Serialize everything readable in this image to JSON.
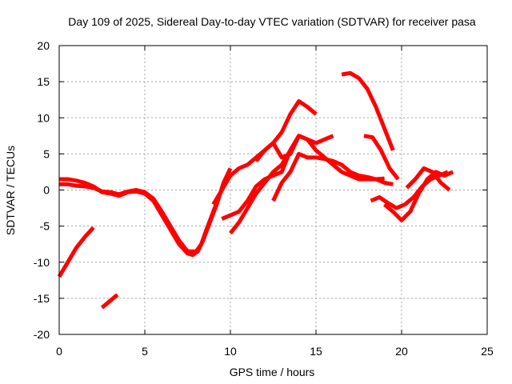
{
  "chart_data": {
    "type": "line",
    "title": "Day 109 of 2025, Sidereal Day-to-day VTEC variation (SDTVAR) for receiver pasa",
    "xlabel": "GPS time / hours",
    "ylabel": "SDTVAR / TECUs",
    "xlim": [
      0,
      25
    ],
    "ylim": [
      -20,
      20
    ],
    "xticks": [
      "0",
      "5",
      "10",
      "15",
      "20",
      "25"
    ],
    "yticks": [
      "-20",
      "-15",
      "-10",
      "-5",
      "0",
      "5",
      "10",
      "15",
      "20"
    ],
    "grid": true,
    "color": "#ff0000",
    "series": [
      {
        "name": "s1",
        "x": [
          0.0,
          0.5,
          1.0,
          1.5,
          2.0,
          2.5,
          3.0,
          3.5,
          4.0,
          4.5,
          5.0,
          5.5,
          6.0,
          6.5,
          7.0,
          7.5,
          7.8,
          8.1,
          8.4,
          8.8,
          9.2,
          9.6,
          10.0
        ],
        "y": [
          1.5,
          1.5,
          1.3,
          1.0,
          0.5,
          -0.3,
          -0.5,
          -0.8,
          -0.3,
          -0.2,
          -0.5,
          -1.5,
          -3.5,
          -5.5,
          -7.5,
          -8.8,
          -9.0,
          -8.5,
          -7.0,
          -4.5,
          -2.0,
          1.0,
          3.0
        ]
      },
      {
        "name": "s2",
        "x": [
          0.0,
          0.5,
          1.0,
          1.5,
          2.0,
          2.5,
          3.0,
          3.5,
          4.0,
          4.5,
          5.0,
          5.5,
          6.0,
          6.5,
          7.0,
          7.5,
          8.0,
          8.3,
          8.6,
          9.0,
          9.4,
          9.8
        ],
        "y": [
          0.8,
          0.8,
          0.6,
          0.5,
          0.3,
          -0.2,
          -0.3,
          -0.6,
          -0.2,
          0.0,
          -0.3,
          -1.2,
          -3.0,
          -5.0,
          -7.0,
          -8.5,
          -8.5,
          -7.5,
          -5.5,
          -3.0,
          -0.5,
          1.5
        ]
      },
      {
        "name": "s3",
        "x": [
          9.0,
          9.5,
          10.0,
          10.5,
          11.0,
          11.5,
          12.0,
          12.5,
          13.0,
          13.5,
          14.0,
          14.5,
          15.0
        ],
        "y": [
          -2.0,
          0.0,
          2.0,
          3.0,
          3.5,
          4.5,
          5.5,
          6.5,
          8.0,
          10.5,
          12.3,
          11.5,
          10.5
        ]
      },
      {
        "name": "s4",
        "x": [
          9.5,
          10.0,
          10.5,
          11.0,
          11.5,
          12.0,
          12.5,
          13.0,
          13.5,
          14.0,
          14.5,
          15.0
        ],
        "y": [
          -4.0,
          -3.5,
          -3.0,
          -1.5,
          0.5,
          1.5,
          2.0,
          2.5,
          5.5,
          7.5,
          7.0,
          6.5
        ]
      },
      {
        "name": "s5",
        "x": [
          11.5,
          12.0,
          12.5,
          13.0,
          13.5,
          14.0,
          14.5,
          15.0,
          15.5,
          16.0
        ],
        "y": [
          4.0,
          5.5,
          6.5,
          4.5,
          5.0,
          7.5,
          7.0,
          6.5,
          7.0,
          7.5
        ]
      },
      {
        "name": "s6",
        "x": [
          10.0,
          10.5,
          11.0,
          11.5,
          12.0,
          12.5,
          13.0,
          13.5,
          14.0,
          14.5,
          15.0,
          15.5,
          16.0,
          16.5,
          17.0,
          17.5,
          18.0,
          18.5,
          19.0,
          19.5
        ],
        "y": [
          -6.0,
          -4.5,
          -2.5,
          -0.5,
          1.0,
          2.5,
          3.5,
          5.5,
          7.5,
          7.0,
          5.5,
          4.5,
          3.5,
          2.5,
          2.0,
          1.5,
          1.5,
          1.5,
          1.0,
          0.8
        ]
      },
      {
        "name": "s7",
        "x": [
          12.5,
          13.0,
          13.5,
          14.0,
          14.5,
          15.0,
          15.5,
          16.0,
          16.5,
          17.0,
          17.5,
          18.0,
          18.5,
          19.0
        ],
        "y": [
          -1.5,
          1.0,
          2.5,
          5.0,
          4.5,
          4.5,
          4.3,
          4.0,
          3.5,
          2.5,
          2.0,
          1.8,
          1.5,
          1.6
        ]
      },
      {
        "name": "s8",
        "x": [
          16.5,
          17.0,
          17.5,
          18.0,
          18.5,
          19.0,
          19.5
        ],
        "y": [
          16.0,
          16.2,
          15.5,
          14.0,
          11.5,
          8.5,
          5.5
        ]
      },
      {
        "name": "s9",
        "x": [
          17.8,
          18.3,
          18.8,
          19.3,
          19.8
        ],
        "y": [
          7.5,
          7.3,
          5.5,
          3.0,
          1.5
        ]
      },
      {
        "name": "s10",
        "x": [
          18.2,
          18.7,
          19.2,
          19.7,
          20.2,
          20.7,
          21.2,
          21.7,
          22.2,
          22.7
        ],
        "y": [
          -1.5,
          -1.0,
          -1.8,
          -2.5,
          -2.0,
          -1.0,
          0.5,
          1.5,
          2.0,
          2.5
        ]
      },
      {
        "name": "s11",
        "x": [
          19.0,
          19.5,
          20.0,
          20.5,
          21.0,
          21.5,
          22.0,
          22.5,
          23.0
        ],
        "y": [
          -2.0,
          -3.0,
          -4.2,
          -3.0,
          -0.5,
          1.5,
          2.5,
          2.0,
          2.5
        ]
      },
      {
        "name": "s12",
        "x": [
          20.3,
          20.8,
          21.3,
          21.8,
          22.3,
          22.8
        ],
        "y": [
          0.3,
          1.5,
          3.0,
          2.5,
          1.0,
          0.0
        ]
      },
      {
        "name": "s13",
        "x": [
          0.0,
          0.5,
          1.0,
          1.5,
          2.0
        ],
        "y": [
          -12.0,
          -10.0,
          -8.0,
          -6.5,
          -5.2
        ]
      },
      {
        "name": "s14",
        "x": [
          2.5,
          3.0,
          3.4
        ],
        "y": [
          -16.3,
          -15.3,
          -14.5
        ]
      }
    ]
  }
}
